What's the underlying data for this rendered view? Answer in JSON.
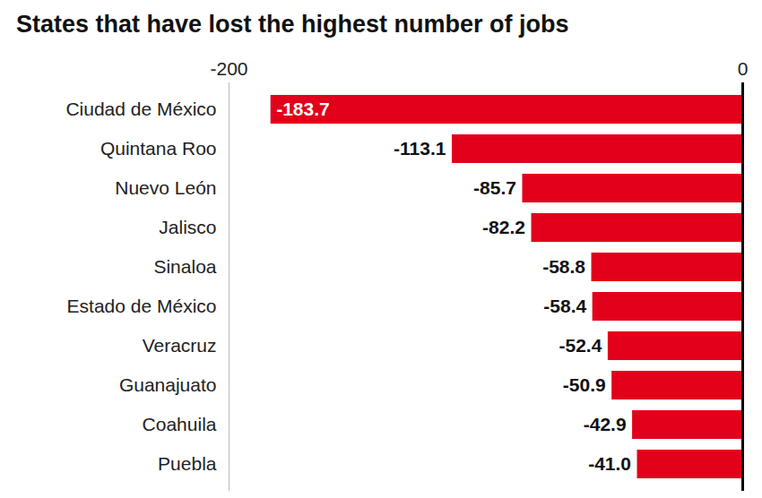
{
  "chart_data": {
    "type": "bar",
    "orientation": "horizontal",
    "title": "States that have lost the highest number of jobs",
    "categories": [
      "Ciudad de México",
      "Quintana Roo",
      "Nuevo León",
      "Jalisco",
      "Sinaloa",
      "Estado de México",
      "Veracruz",
      "Guanajuato",
      "Coahuila",
      "Puebla"
    ],
    "values": [
      -183.7,
      -113.1,
      -85.7,
      -82.2,
      -58.8,
      -58.4,
      -52.4,
      -50.9,
      -42.9,
      -41.0
    ],
    "value_labels": [
      "-183.7",
      "-113.1",
      "-85.7",
      "-82.2",
      "-58.8",
      "-58.4",
      "-52.4",
      "-50.9",
      "-42.9",
      "-41.0"
    ],
    "color": "#e3001b",
    "xlim": [
      -200,
      0
    ],
    "xticks": [
      -200,
      0
    ],
    "grid": true,
    "data_labels": true
  }
}
